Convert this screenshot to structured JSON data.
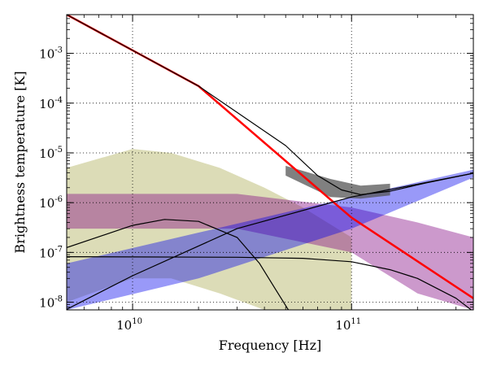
{
  "chart_data": {
    "type": "line",
    "xlabel": "Frequency [Hz]",
    "ylabel": "Brightness temperature [K]",
    "x_scale": "log",
    "y_scale": "log",
    "xlim": [
      5000000000.0,
      360000000000.0
    ],
    "ylim": [
      7e-09,
      0.006
    ],
    "grid": true,
    "legend": "none",
    "x_ticks": [
      {
        "value": 10000000000.0,
        "base": "10",
        "exp": "10"
      },
      {
        "value": 100000000000.0,
        "base": "10",
        "exp": "11"
      }
    ],
    "y_ticks": [
      {
        "value": 1e-08,
        "base": "10",
        "exp": "-8"
      },
      {
        "value": 1e-07,
        "base": "10",
        "exp": "-7"
      },
      {
        "value": 1e-06,
        "base": "10",
        "exp": "-6"
      },
      {
        "value": 1e-05,
        "base": "10",
        "exp": "-5"
      },
      {
        "value": 0.0001,
        "base": "10",
        "exp": "-4"
      },
      {
        "value": 0.001,
        "base": "10",
        "exp": "-3"
      }
    ],
    "bands": [
      {
        "color": "#a8a84a",
        "samples": [
          {
            "x": 5000000000.0,
            "lo": 1e-08,
            "hi": 5e-06
          },
          {
            "x": 10000000000.0,
            "lo": 3e-08,
            "hi": 1.2e-05
          },
          {
            "x": 15000000000.0,
            "lo": 3e-08,
            "hi": 1e-05
          },
          {
            "x": 25000000000.0,
            "lo": 1.5e-08,
            "hi": 5e-06
          },
          {
            "x": 40000000000.0,
            "lo": 7e-09,
            "hi": 2e-06
          },
          {
            "x": 60000000000.0,
            "lo": 7e-09,
            "hi": 8e-07
          },
          {
            "x": 100000000000.0,
            "lo": 7e-09,
            "hi": 2e-07
          }
        ]
      },
      {
        "color": "#800080",
        "samples": [
          {
            "x": 5000000000.0,
            "lo": 3e-07,
            "hi": 1.5e-06
          },
          {
            "x": 30000000000.0,
            "lo": 3e-07,
            "hi": 1.5e-06
          },
          {
            "x": 100000000000.0,
            "lo": 1e-07,
            "hi": 8e-07
          },
          {
            "x": 200000000000.0,
            "lo": 1.5e-08,
            "hi": 4e-07
          },
          {
            "x": 360000000000.0,
            "lo": 7e-09,
            "hi": 2e-07
          }
        ]
      },
      {
        "color": "#0000ee",
        "samples": [
          {
            "x": 5000000000.0,
            "lo": 7e-09,
            "hi": 6e-08
          },
          {
            "x": 20000000000.0,
            "lo": 3e-08,
            "hi": 2.5e-07
          },
          {
            "x": 100000000000.0,
            "lo": 3e-07,
            "hi": 1.3e-06
          },
          {
            "x": 360000000000.0,
            "lo": 3.2e-06,
            "hi": 4.6e-06
          }
        ]
      },
      {
        "color": "#555555",
        "samples": [
          {
            "x": 50000000000.0,
            "lo": 3.5e-06,
            "hi": 5.5e-06
          },
          {
            "x": 80000000000.0,
            "lo": 1.3e-06,
            "hi": 3e-06
          },
          {
            "x": 110000000000.0,
            "lo": 1.2e-06,
            "hi": 2.2e-06
          },
          {
            "x": 150000000000.0,
            "lo": 1.4e-06,
            "hi": 2.4e-06
          }
        ]
      }
    ],
    "series": [
      {
        "color": "#ff0000",
        "width": 2.5,
        "points": [
          [
            5000000000.0,
            0.006
          ],
          [
            20000000000.0,
            0.00022
          ],
          [
            100000000000.0,
            5e-07
          ],
          [
            360000000000.0,
            1.2e-08
          ]
        ]
      },
      {
        "color": "#000000",
        "width": 1.2,
        "points": [
          [
            5000000000.0,
            0.006
          ],
          [
            20000000000.0,
            0.00022
          ],
          [
            50000000000.0,
            1.4e-05
          ],
          [
            70000000000.0,
            3.5e-06
          ],
          [
            90000000000.0,
            1.8e-06
          ],
          [
            110000000000.0,
            1.45e-06
          ],
          [
            150000000000.0,
            1.7e-06
          ],
          [
            220000000000.0,
            2.5e-06
          ],
          [
            360000000000.0,
            3.9e-06
          ]
        ]
      },
      {
        "color": "#000000",
        "width": 1.2,
        "points": [
          [
            5000000000.0,
            7.2e-09
          ],
          [
            10000000000.0,
            3.4e-08
          ],
          [
            30000000000.0,
            3e-07
          ],
          [
            100000000000.0,
            1.3e-06
          ],
          [
            360000000000.0,
            3.9e-06
          ]
        ]
      },
      {
        "color": "#000000",
        "width": 1.2,
        "points": [
          [
            5000000000.0,
            1.25e-07
          ],
          [
            10000000000.0,
            3.5e-07
          ],
          [
            14000000000.0,
            4.6e-07
          ],
          [
            20000000000.0,
            4.2e-07
          ],
          [
            30000000000.0,
            2e-07
          ],
          [
            38000000000.0,
            6e-08
          ],
          [
            45000000000.0,
            1.8e-08
          ],
          [
            52000000000.0,
            6.5e-09
          ]
        ]
      },
      {
        "color": "#000000",
        "width": 1.2,
        "points": [
          [
            5000000000.0,
            8.2e-08
          ],
          [
            30000000000.0,
            8e-08
          ],
          [
            60000000000.0,
            7.6e-08
          ],
          [
            100000000000.0,
            6.5e-08
          ],
          [
            150000000000.0,
            4.5e-08
          ],
          [
            200000000000.0,
            3e-08
          ],
          [
            300000000000.0,
            1.2e-08
          ],
          [
            360000000000.0,
            6.5e-09
          ]
        ]
      }
    ]
  }
}
